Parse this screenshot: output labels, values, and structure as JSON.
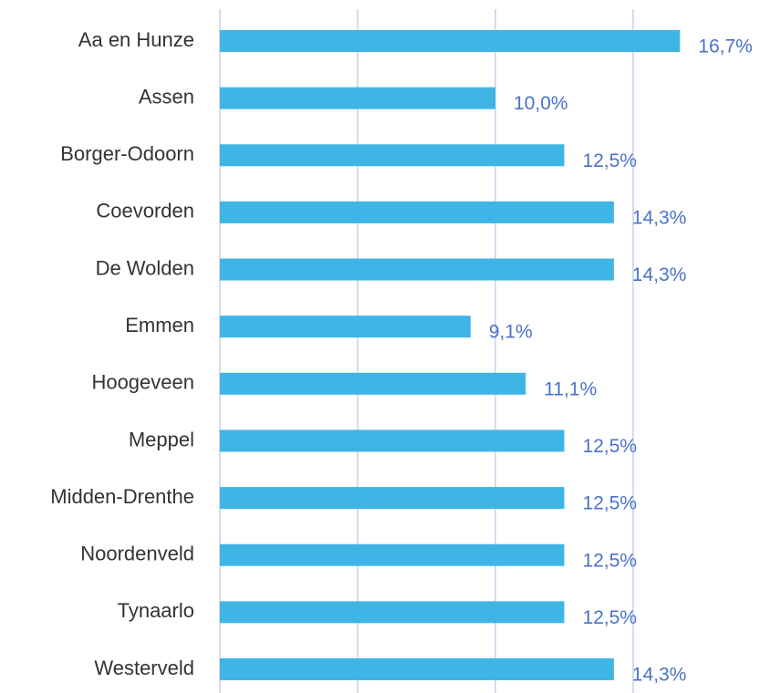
{
  "chart_data": {
    "type": "bar",
    "orientation": "horizontal",
    "categories": [
      "Aa en Hunze",
      "Assen",
      "Borger-Odoorn",
      "Coevorden",
      "De Wolden",
      "Emmen",
      "Hoogeveen",
      "Meppel",
      "Midden-Drenthe",
      "Noordenveld",
      "Tynaarlo",
      "Westerveld"
    ],
    "values": [
      16.7,
      10.0,
      12.5,
      14.3,
      14.3,
      9.1,
      11.1,
      12.5,
      12.5,
      12.5,
      12.5,
      14.3
    ],
    "value_labels": [
      "16,7%",
      "10,0%",
      "12,5%",
      "14,3%",
      "14,3%",
      "9,1%",
      "11,1%",
      "12,5%",
      "12,5%",
      "12,5%",
      "12,5%",
      "14,3%"
    ],
    "color": "#3fb5e6",
    "xlim": [
      0,
      19.5
    ],
    "xticks": [
      0,
      5,
      10,
      15
    ],
    "grid": true
  }
}
